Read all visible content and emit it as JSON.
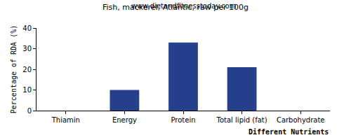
{
  "chart_data": {
    "type": "bar",
    "title": "Fish, mackerel, Atlantic, raw per 100g",
    "subtitle": "www.dietandfitnesstoday.com",
    "x_label": "Different Nutrients",
    "y_label": "Percentage of RDA (%)",
    "categories": [
      "Thiamin",
      "Energy",
      "Protein",
      "Total lipid (fat)",
      "Carbohydrate"
    ],
    "values": [
      0,
      10,
      33,
      21,
      0
    ],
    "color": "#27408b",
    "ylim": [
      0,
      40
    ],
    "yticks": [
      0,
      10,
      20,
      30,
      40
    ],
    "grid": false
  }
}
